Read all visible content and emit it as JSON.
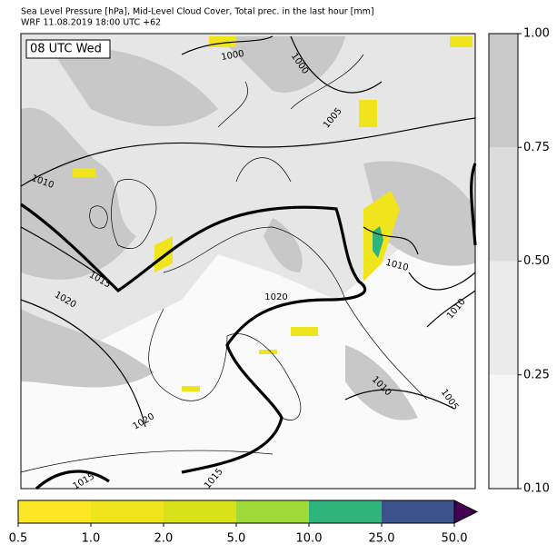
{
  "header": {
    "title": "Sea Level Pressure [hPa], Mid-Level Cloud Cover, Total prec. in the last hour [mm]",
    "subtitle": "WRF 11.08.2019 18:00 UTC +62"
  },
  "time_label": "08 UTC Wed",
  "isobar_labels": [
    "1000",
    "1000",
    "1005",
    "1010",
    "1015",
    "1020",
    "1020",
    "1010",
    "1010",
    "1010",
    "1005",
    "1020",
    "1015",
    "1015"
  ],
  "cloud_colorbar": {
    "colors": [
      "#f7f7f7",
      "#ebebeb",
      "#dcdcdc",
      "#c9c9c9"
    ],
    "ticks": [
      {
        "value": 0.1,
        "label": "0.10"
      },
      {
        "value": 0.25,
        "label": "0.25"
      },
      {
        "value": 0.5,
        "label": "0.50"
      },
      {
        "value": 0.75,
        "label": "0.75"
      },
      {
        "value": 1,
        "label": "1.00"
      }
    ]
  },
  "precip_colorbar": {
    "colors": [
      "#fde725",
      "#f0e51d",
      "#d9e119",
      "#a0da39",
      "#2fb47c",
      "#3b528b"
    ],
    "extend_color": "#440154",
    "ticks": [
      {
        "value": 0.5,
        "label": "0.5"
      },
      {
        "value": 1,
        "label": "1.0"
      },
      {
        "value": 2,
        "label": "2.0"
      },
      {
        "value": 5,
        "label": "5.0"
      },
      {
        "value": 10,
        "label": "10.0"
      },
      {
        "value": 25,
        "label": "25.0"
      },
      {
        "value": 50,
        "label": "50.0"
      }
    ]
  }
}
